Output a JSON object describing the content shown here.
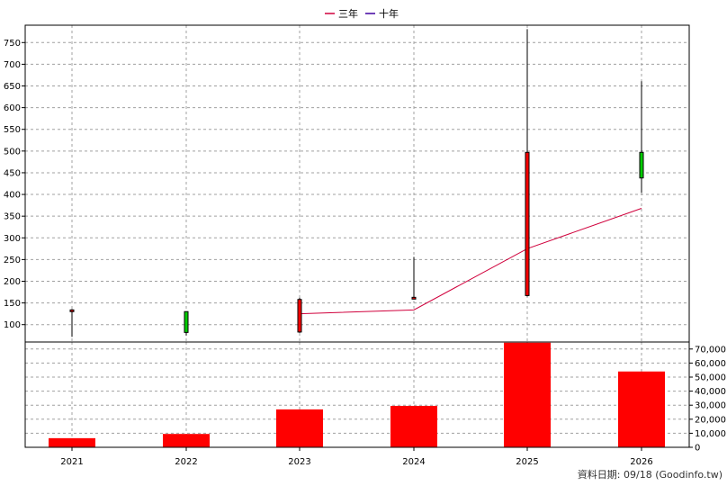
{
  "chart_data": [
    {
      "type": "candlestick",
      "categories": [
        "2021",
        "2022",
        "2023",
        "2024",
        "2025",
        "2026"
      ],
      "ohlc": [
        {
          "x": "2021",
          "open": 134,
          "high": 136,
          "low": 72,
          "close": 132
        },
        {
          "x": "2022",
          "open": 82,
          "high": 130,
          "low": 75,
          "close": 130
        },
        {
          "x": "2023",
          "open": 158,
          "high": 162,
          "low": 81,
          "close": 83
        },
        {
          "x": "2024",
          "open": 163,
          "high": 256,
          "low": 160,
          "close": 160
        },
        {
          "x": "2025",
          "open": 497,
          "high": 781,
          "low": 165,
          "close": 167
        },
        {
          "x": "2026",
          "open": 438,
          "high": 661,
          "low": 404,
          "close": 497
        }
      ],
      "series": [
        {
          "name": "三年",
          "color": "#d0003c",
          "values": [
            null,
            null,
            125,
            134,
            275,
            368
          ]
        },
        {
          "name": "十年",
          "color": "#4000a0",
          "values": [
            null,
            null,
            null,
            null,
            null,
            null
          ]
        }
      ],
      "y_ticks": [
        "100",
        "150",
        "200",
        "250",
        "300",
        "350",
        "400",
        "450",
        "500",
        "550",
        "600",
        "650",
        "700",
        "750"
      ],
      "ylim": [
        60,
        790
      ],
      "grid": true,
      "legend": "top-center"
    },
    {
      "type": "bar",
      "categories": [
        "2021",
        "2022",
        "2023",
        "2024",
        "2025",
        "2026"
      ],
      "values": [
        6500,
        9500,
        27000,
        29500,
        74500,
        54000
      ],
      "color": "#ff0000",
      "y_ticks": [
        "0",
        "10,000",
        "20,000",
        "30,000",
        "40,000",
        "50,000",
        "60,000",
        "70,000"
      ],
      "ylim": [
        0,
        75000
      ],
      "grid": true,
      "y_axis_side": "right"
    }
  ],
  "footer": {
    "text": "資料日期: 09/18  (Goodinfo.tw)"
  }
}
